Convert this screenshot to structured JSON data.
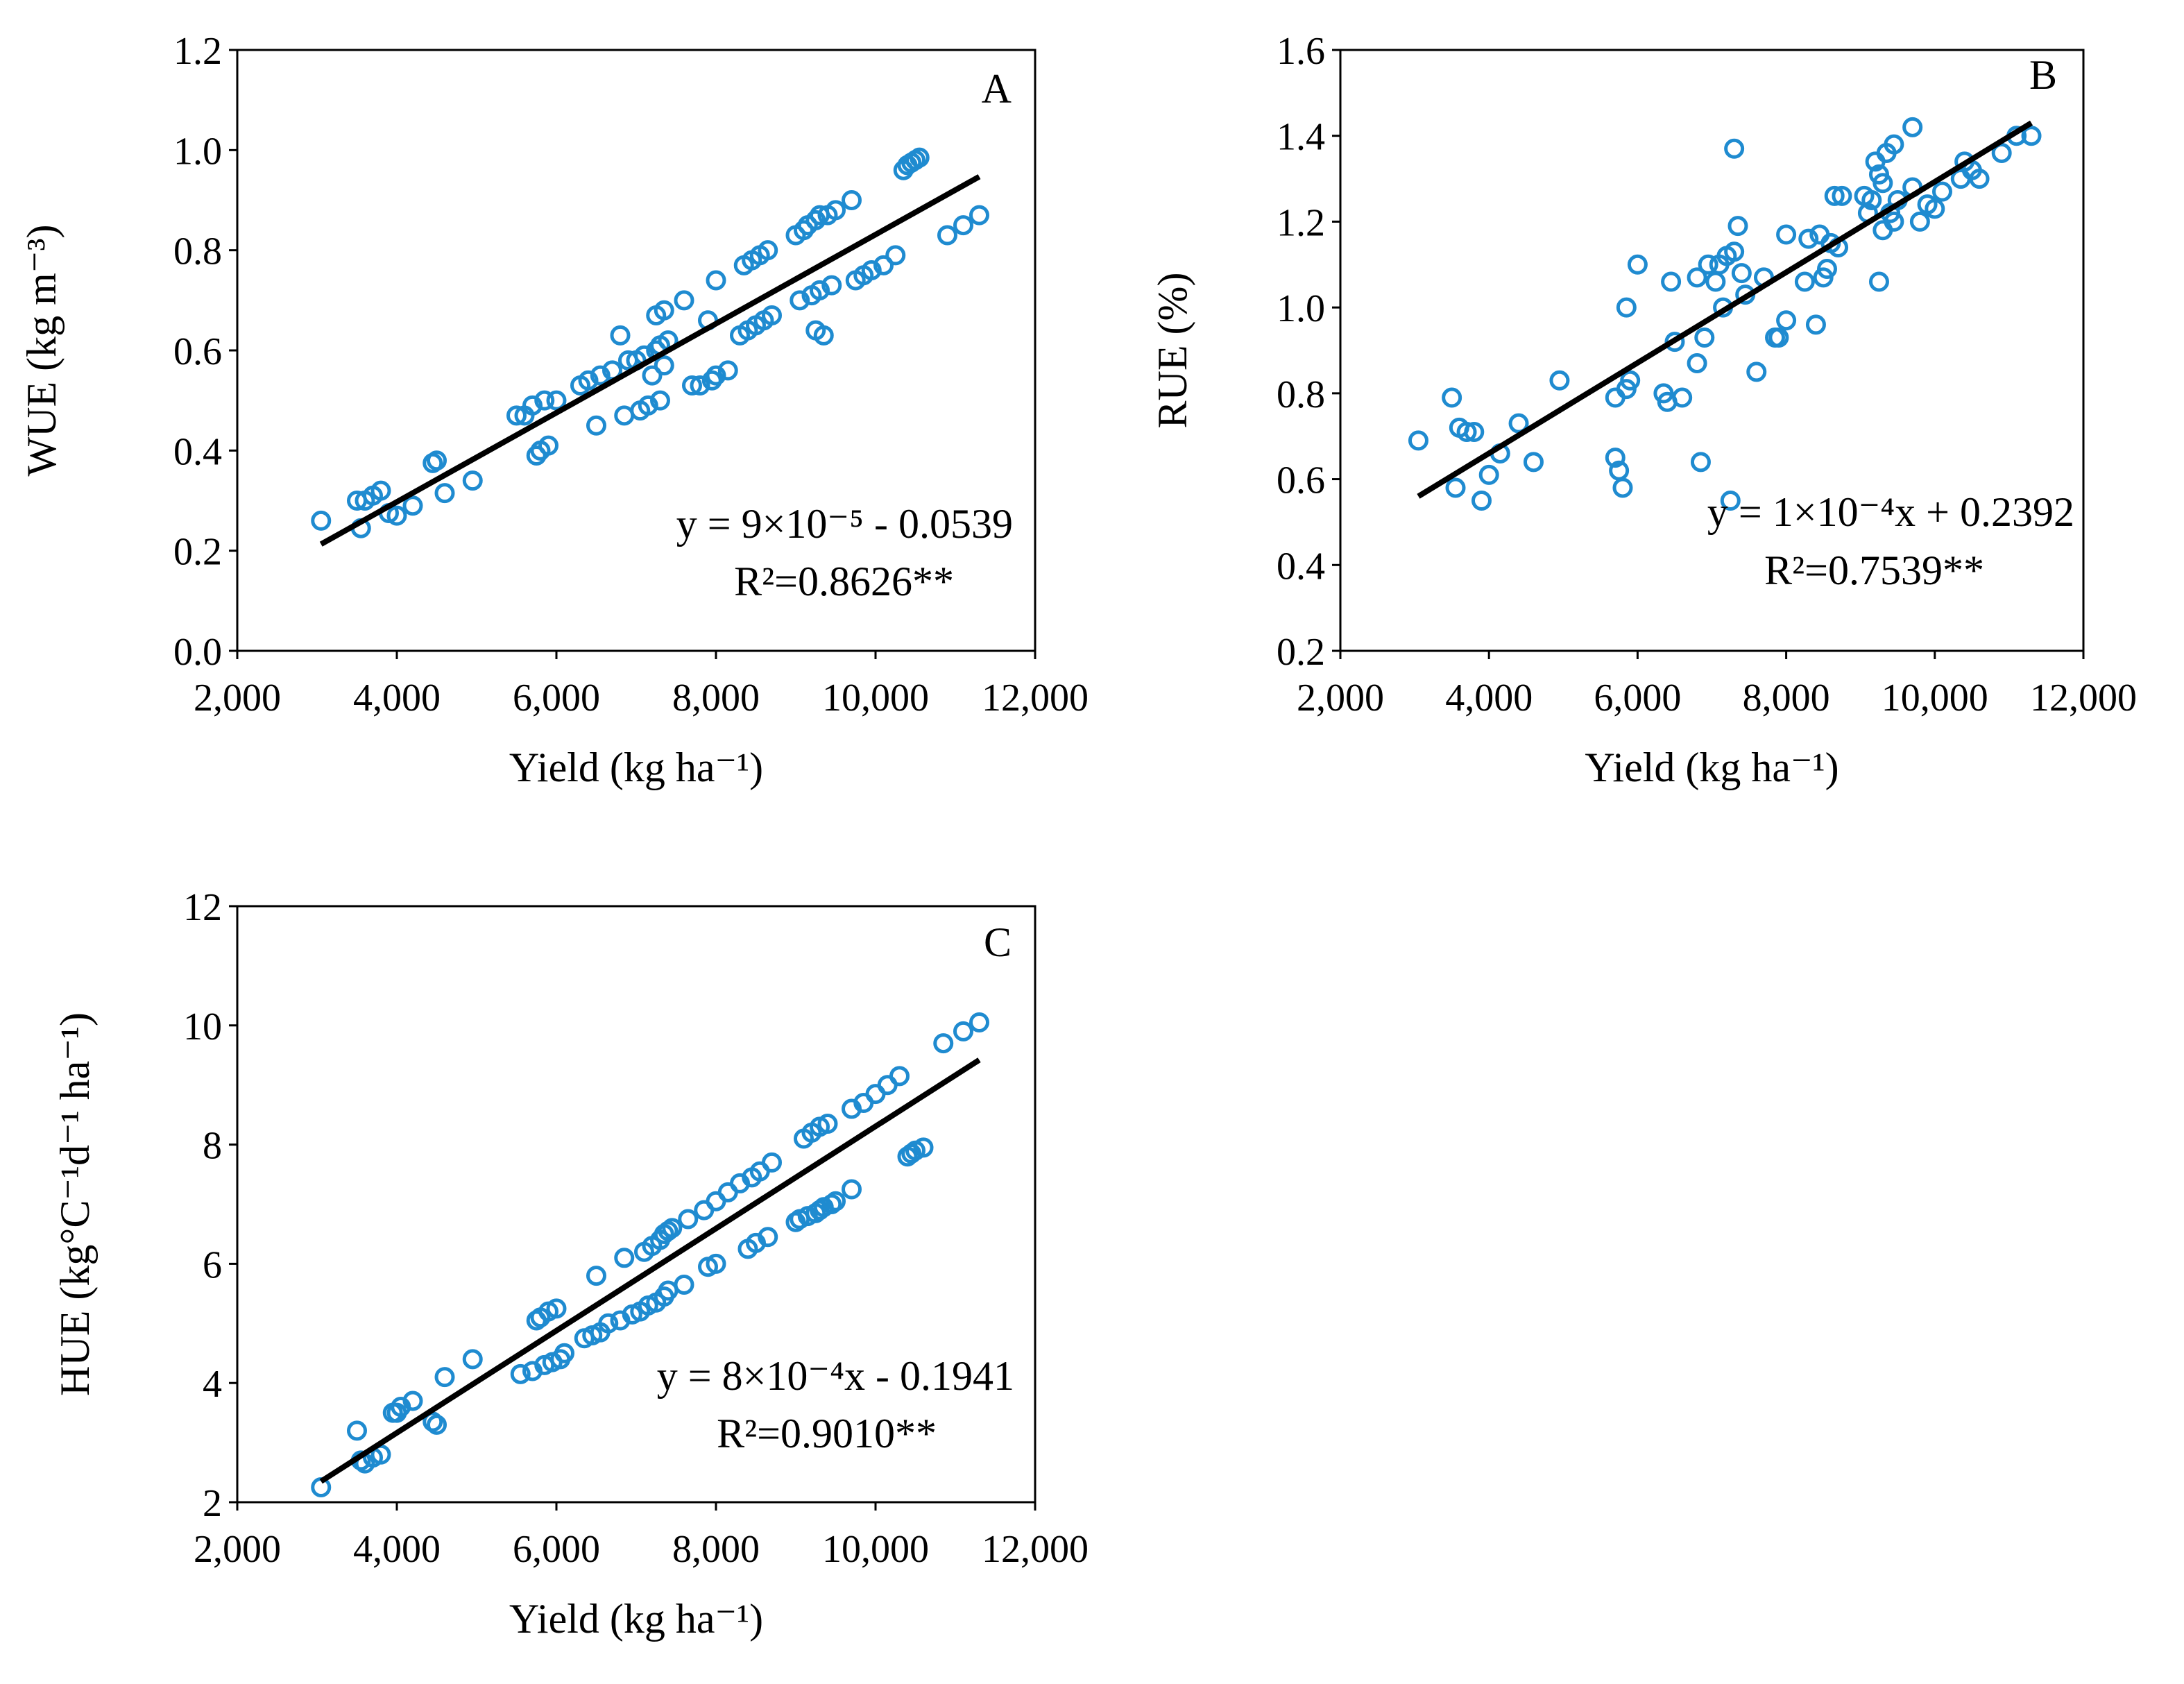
{
  "chart_data": [
    {
      "panel": "A",
      "type": "scatter",
      "xlabel": "Yield (kg ha⁻¹)",
      "ylabel": "WUE (kg m⁻³)",
      "xlim": [
        2000,
        12000
      ],
      "ylim": [
        0.0,
        1.2
      ],
      "xticks": [
        2000,
        4000,
        6000,
        8000,
        10000,
        12000
      ],
      "xtick_labels": [
        "2,000",
        "4,000",
        "6,000",
        "8,000",
        "10,000",
        "12,000"
      ],
      "yticks": [
        0.0,
        0.2,
        0.4,
        0.6,
        0.8,
        1.0,
        1.2
      ],
      "ytick_labels": [
        "0.0",
        "0.2",
        "0.4",
        "0.6",
        "0.8",
        "1.0",
        "1.2"
      ],
      "equation": "y = 9×10⁻⁵ - 0.0539",
      "r2": "R²=0.8626**",
      "fit_line": {
        "x": [
          3050,
          11300
        ],
        "y": [
          0.213,
          0.947
        ]
      },
      "colors": {
        "points": "#1f8bd0",
        "line": "#000000"
      },
      "points": [
        [
          3050,
          0.26
        ],
        [
          3500,
          0.3
        ],
        [
          3550,
          0.245
        ],
        [
          3600,
          0.3
        ],
        [
          3700,
          0.31
        ],
        [
          3800,
          0.32
        ],
        [
          3900,
          0.275
        ],
        [
          4000,
          0.27
        ],
        [
          4200,
          0.29
        ],
        [
          4450,
          0.375
        ],
        [
          4500,
          0.38
        ],
        [
          4600,
          0.315
        ],
        [
          4950,
          0.34
        ],
        [
          5500,
          0.47
        ],
        [
          5600,
          0.47
        ],
        [
          5700,
          0.49
        ],
        [
          5750,
          0.39
        ],
        [
          5800,
          0.4
        ],
        [
          5850,
          0.5
        ],
        [
          5900,
          0.41
        ],
        [
          6000,
          0.5
        ],
        [
          6300,
          0.53
        ],
        [
          6400,
          0.54
        ],
        [
          6500,
          0.45
        ],
        [
          6550,
          0.55
        ],
        [
          6700,
          0.56
        ],
        [
          6800,
          0.63
        ],
        [
          6850,
          0.47
        ],
        [
          6900,
          0.58
        ],
        [
          7000,
          0.58
        ],
        [
          7050,
          0.48
        ],
        [
          7100,
          0.59
        ],
        [
          7150,
          0.49
        ],
        [
          7200,
          0.55
        ],
        [
          7250,
          0.6
        ],
        [
          7250,
          0.67
        ],
        [
          7300,
          0.5
        ],
        [
          7300,
          0.61
        ],
        [
          7350,
          0.57
        ],
        [
          7350,
          0.68
        ],
        [
          7400,
          0.62
        ],
        [
          7600,
          0.7
        ],
        [
          7700,
          0.53
        ],
        [
          7800,
          0.53
        ],
        [
          7900,
          0.66
        ],
        [
          7950,
          0.54
        ],
        [
          8000,
          0.55
        ],
        [
          8000,
          0.74
        ],
        [
          8150,
          0.56
        ],
        [
          8300,
          0.63
        ],
        [
          8350,
          0.77
        ],
        [
          8400,
          0.64
        ],
        [
          8450,
          0.78
        ],
        [
          8500,
          0.65
        ],
        [
          8550,
          0.79
        ],
        [
          8600,
          0.66
        ],
        [
          8650,
          0.8
        ],
        [
          8700,
          0.67
        ],
        [
          9000,
          0.83
        ],
        [
          9050,
          0.7
        ],
        [
          9100,
          0.84
        ],
        [
          9150,
          0.85
        ],
        [
          9200,
          0.71
        ],
        [
          9250,
          0.86
        ],
        [
          9250,
          0.64
        ],
        [
          9300,
          0.72
        ],
        [
          9300,
          0.87
        ],
        [
          9350,
          0.63
        ],
        [
          9400,
          0.87
        ],
        [
          9450,
          0.73
        ],
        [
          9500,
          0.88
        ],
        [
          9700,
          0.9
        ],
        [
          9750,
          0.74
        ],
        [
          9850,
          0.75
        ],
        [
          9950,
          0.76
        ],
        [
          10100,
          0.77
        ],
        [
          10250,
          0.79
        ],
        [
          10350,
          0.96
        ],
        [
          10400,
          0.97
        ],
        [
          10450,
          0.975
        ],
        [
          10500,
          0.98
        ],
        [
          10550,
          0.985
        ],
        [
          10900,
          0.83
        ],
        [
          11100,
          0.85
        ],
        [
          11300,
          0.87
        ]
      ]
    },
    {
      "panel": "B",
      "type": "scatter",
      "xlabel": "Yield (kg ha⁻¹)",
      "ylabel": "RUE (%)",
      "xlim": [
        2000,
        12000
      ],
      "ylim": [
        0.2,
        1.6
      ],
      "xticks": [
        2000,
        4000,
        6000,
        8000,
        10000,
        12000
      ],
      "xtick_labels": [
        "2,000",
        "4,000",
        "6,000",
        "8,000",
        "10,000",
        "12,000"
      ],
      "yticks": [
        0.2,
        0.4,
        0.6,
        0.8,
        1.0,
        1.2,
        1.4,
        1.6
      ],
      "ytick_labels": [
        "0.2",
        "0.4",
        "0.6",
        "0.8",
        "1.0",
        "1.2",
        "1.4",
        "1.6"
      ],
      "equation": "y = 1×10⁻⁴x + 0.2392",
      "r2": "R²=0.7539**",
      "fit_line": {
        "x": [
          3050,
          11300
        ],
        "y": [
          0.56,
          1.43
        ]
      },
      "colors": {
        "points": "#1f8bd0",
        "line": "#000000"
      },
      "points": [
        [
          3050,
          0.69
        ],
        [
          3500,
          0.79
        ],
        [
          3550,
          0.58
        ],
        [
          3600,
          0.72
        ],
        [
          3700,
          0.71
        ],
        [
          3800,
          0.71
        ],
        [
          3900,
          0.55
        ],
        [
          4000,
          0.61
        ],
        [
          4150,
          0.66
        ],
        [
          4400,
          0.73
        ],
        [
          4600,
          0.64
        ],
        [
          4950,
          0.83
        ],
        [
          5700,
          0.79
        ],
        [
          5700,
          0.65
        ],
        [
          5750,
          0.62
        ],
        [
          5800,
          0.58
        ],
        [
          5850,
          1.0
        ],
        [
          5850,
          0.81
        ],
        [
          5900,
          0.83
        ],
        [
          6000,
          1.1
        ],
        [
          6350,
          0.8
        ],
        [
          6400,
          0.78
        ],
        [
          6450,
          1.06
        ],
        [
          6500,
          0.92
        ],
        [
          6600,
          0.79
        ],
        [
          6800,
          0.87
        ],
        [
          6800,
          1.07
        ],
        [
          6850,
          0.64
        ],
        [
          6900,
          0.93
        ],
        [
          6950,
          1.1
        ],
        [
          7050,
          1.06
        ],
        [
          7100,
          1.1
        ],
        [
          7150,
          1.0
        ],
        [
          7200,
          1.12
        ],
        [
          7250,
          0.55
        ],
        [
          7300,
          1.13
        ],
        [
          7300,
          1.37
        ],
        [
          7350,
          1.19
        ],
        [
          7400,
          1.08
        ],
        [
          7450,
          1.03
        ],
        [
          7600,
          0.85
        ],
        [
          7700,
          1.07
        ],
        [
          7850,
          0.93
        ],
        [
          7900,
          0.93
        ],
        [
          8000,
          0.97
        ],
        [
          8000,
          1.17
        ],
        [
          8250,
          1.06
        ],
        [
          8300,
          1.16
        ],
        [
          8400,
          0.96
        ],
        [
          8450,
          1.17
        ],
        [
          8500,
          1.07
        ],
        [
          8550,
          1.09
        ],
        [
          8600,
          1.15
        ],
        [
          8650,
          1.26
        ],
        [
          8700,
          1.14
        ],
        [
          8750,
          1.26
        ],
        [
          9050,
          1.26
        ],
        [
          9100,
          1.22
        ],
        [
          9150,
          1.25
        ],
        [
          9200,
          1.34
        ],
        [
          9250,
          1.06
        ],
        [
          9250,
          1.31
        ],
        [
          9300,
          1.18
        ],
        [
          9300,
          1.29
        ],
        [
          9350,
          1.36
        ],
        [
          9400,
          1.22
        ],
        [
          9450,
          1.38
        ],
        [
          9450,
          1.2
        ],
        [
          9500,
          1.25
        ],
        [
          9700,
          1.28
        ],
        [
          9700,
          1.42
        ],
        [
          9800,
          1.2
        ],
        [
          9900,
          1.24
        ],
        [
          10000,
          1.23
        ],
        [
          10100,
          1.27
        ],
        [
          10350,
          1.3
        ],
        [
          10400,
          1.34
        ],
        [
          10500,
          1.32
        ],
        [
          10600,
          1.3
        ],
        [
          10900,
          1.36
        ],
        [
          11100,
          1.4
        ],
        [
          11300,
          1.4
        ]
      ]
    },
    {
      "panel": "C",
      "type": "scatter",
      "xlabel": "Yield (kg ha⁻¹)",
      "ylabel": "HUE (kg°C⁻¹d⁻¹ ha⁻¹)",
      "xlim": [
        2000,
        12000
      ],
      "ylim": [
        2,
        12
      ],
      "xticks": [
        2000,
        4000,
        6000,
        8000,
        10000,
        12000
      ],
      "xtick_labels": [
        "2,000",
        "4,000",
        "6,000",
        "8,000",
        "10,000",
        "12,000"
      ],
      "yticks": [
        2,
        4,
        6,
        8,
        10,
        12
      ],
      "ytick_labels": [
        "2",
        "4",
        "6",
        "8",
        "10",
        "12"
      ],
      "equation": "y = 8×10⁻⁴x - 0.1941",
      "r2": "R²=0.9010**",
      "fit_line": {
        "x": [
          3050,
          11300
        ],
        "y": [
          2.35,
          9.42
        ]
      },
      "colors": {
        "points": "#1f8bd0",
        "line": "#000000"
      },
      "points": [
        [
          3050,
          2.25
        ],
        [
          3500,
          3.2
        ],
        [
          3550,
          2.7
        ],
        [
          3600,
          2.65
        ],
        [
          3700,
          2.75
        ],
        [
          3800,
          2.8
        ],
        [
          3950,
          3.5
        ],
        [
          4000,
          3.5
        ],
        [
          4050,
          3.6
        ],
        [
          4200,
          3.7
        ],
        [
          4450,
          3.35
        ],
        [
          4500,
          3.3
        ],
        [
          4600,
          4.1
        ],
        [
          4950,
          4.4
        ],
        [
          5550,
          4.15
        ],
        [
          5700,
          4.2
        ],
        [
          5750,
          5.05
        ],
        [
          5800,
          5.1
        ],
        [
          5850,
          4.3
        ],
        [
          5900,
          5.2
        ],
        [
          5950,
          4.35
        ],
        [
          6000,
          5.25
        ],
        [
          6050,
          4.4
        ],
        [
          6100,
          4.5
        ],
        [
          6350,
          4.75
        ],
        [
          6450,
          4.8
        ],
        [
          6500,
          5.8
        ],
        [
          6550,
          4.85
        ],
        [
          6650,
          5.0
        ],
        [
          6800,
          5.05
        ],
        [
          6850,
          6.1
        ],
        [
          6950,
          5.15
        ],
        [
          7050,
          5.2
        ],
        [
          7100,
          6.2
        ],
        [
          7150,
          5.3
        ],
        [
          7200,
          6.3
        ],
        [
          7250,
          5.35
        ],
        [
          7300,
          6.4
        ],
        [
          7350,
          5.45
        ],
        [
          7350,
          6.5
        ],
        [
          7400,
          5.55
        ],
        [
          7400,
          6.55
        ],
        [
          7450,
          6.6
        ],
        [
          7600,
          5.65
        ],
        [
          7650,
          6.75
        ],
        [
          7850,
          6.9
        ],
        [
          7900,
          5.95
        ],
        [
          8000,
          6.0
        ],
        [
          8000,
          7.05
        ],
        [
          8150,
          7.2
        ],
        [
          8300,
          7.35
        ],
        [
          8400,
          6.25
        ],
        [
          8450,
          7.45
        ],
        [
          8500,
          6.35
        ],
        [
          8550,
          7.55
        ],
        [
          8650,
          6.45
        ],
        [
          8700,
          7.7
        ],
        [
          9000,
          6.7
        ],
        [
          9050,
          6.75
        ],
        [
          9100,
          8.1
        ],
        [
          9150,
          6.8
        ],
        [
          9200,
          8.2
        ],
        [
          9250,
          6.85
        ],
        [
          9300,
          8.3
        ],
        [
          9300,
          6.9
        ],
        [
          9350,
          6.95
        ],
        [
          9400,
          8.35
        ],
        [
          9450,
          7.0
        ],
        [
          9500,
          7.05
        ],
        [
          9700,
          7.25
        ],
        [
          9700,
          8.6
        ],
        [
          9850,
          8.7
        ],
        [
          10000,
          8.85
        ],
        [
          10150,
          9.0
        ],
        [
          10300,
          9.15
        ],
        [
          10400,
          7.8
        ],
        [
          10450,
          7.85
        ],
        [
          10500,
          7.9
        ],
        [
          10600,
          7.95
        ],
        [
          10850,
          9.7
        ],
        [
          11100,
          9.9
        ],
        [
          11300,
          10.05
        ]
      ]
    }
  ]
}
